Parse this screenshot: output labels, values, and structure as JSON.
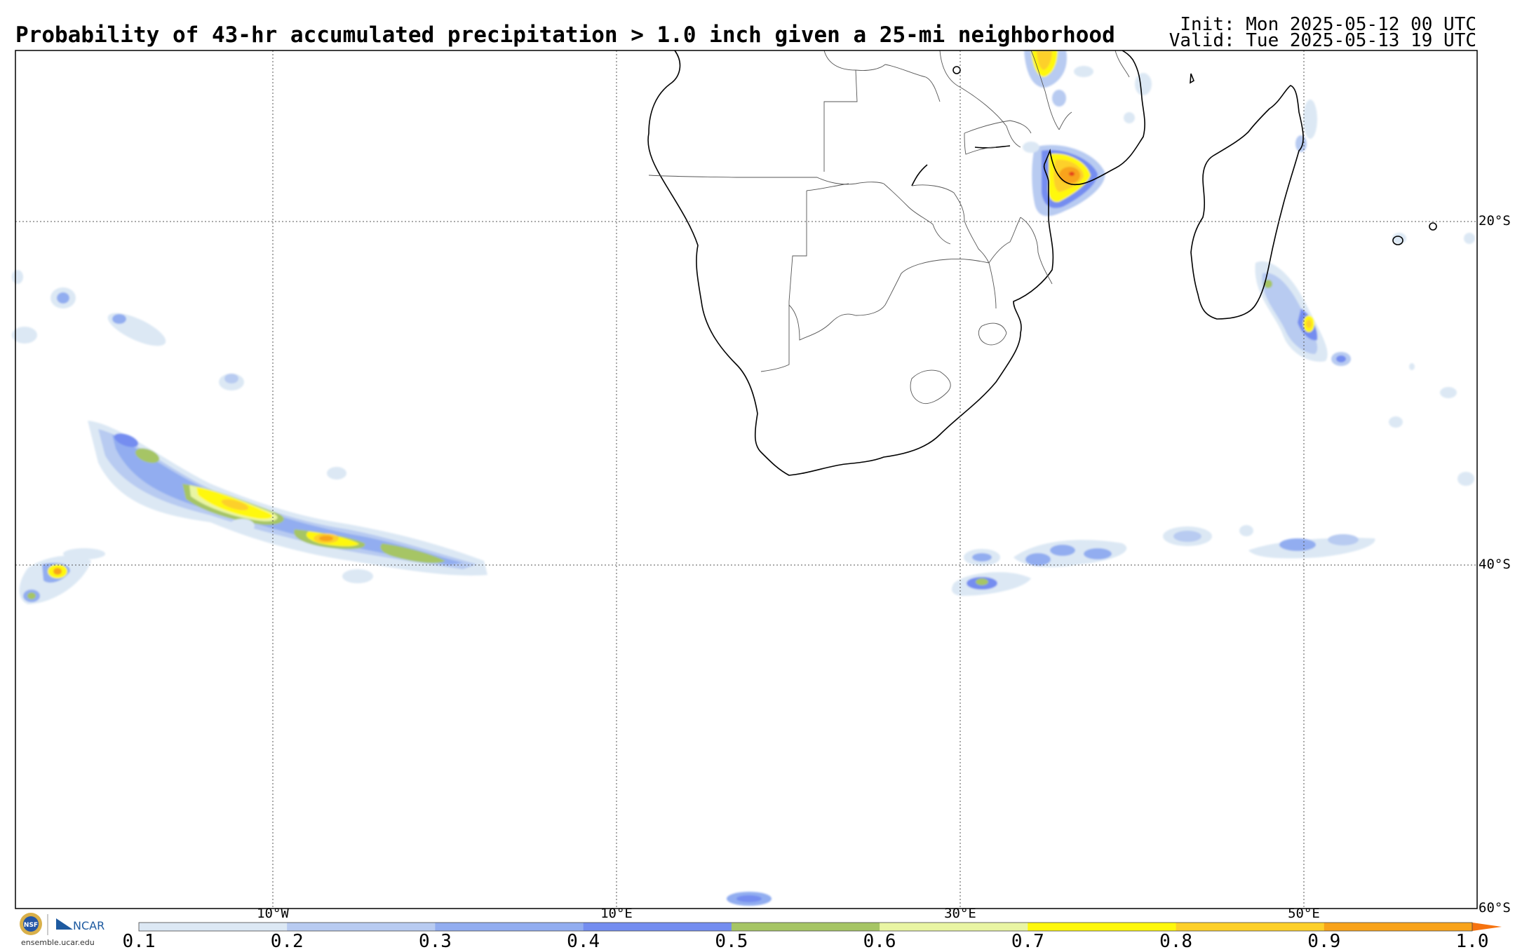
{
  "header": {
    "title": "Probability of 43-hr accumulated precipitation > 1.0 inch given a 25-mi neighborhood",
    "init": "Init: Mon 2025-05-12 00 UTC",
    "valid": "Valid: Tue 2025-05-13 19 UTC"
  },
  "map": {
    "lat_labels": [
      "20°S",
      "40°S",
      "60°S"
    ],
    "lon_labels": [
      "10°W",
      "10°E",
      "30°E",
      "50°E"
    ]
  },
  "colorbar": {
    "labels": [
      "0.1",
      "0.2",
      "0.3",
      "0.4",
      "0.5",
      "0.6",
      "0.7",
      "0.8",
      "0.9",
      "1.0"
    ],
    "colors": [
      "#dce8f4",
      "#b8cbf1",
      "#92adf0",
      "#748df0",
      "#a6c565",
      "#e9f5a3",
      "#fff80d",
      "#fdd02a",
      "#f8a31a"
    ],
    "extend_color": "#f6730f"
  },
  "logo": {
    "org_left": "NSF",
    "org_right": "NCAR",
    "url": "ensemble.ucar.edu"
  },
  "legend_colors": {
    "p10": "#dce8f4",
    "p20": "#b8cbf1",
    "p30": "#92adf0",
    "p40": "#748df0",
    "p50": "#a6c565",
    "p60": "#e9f5a3",
    "p70": "#fff80d",
    "p80": "#fdd02a",
    "p90": "#f8a31a",
    "p100": "#e5421d"
  }
}
